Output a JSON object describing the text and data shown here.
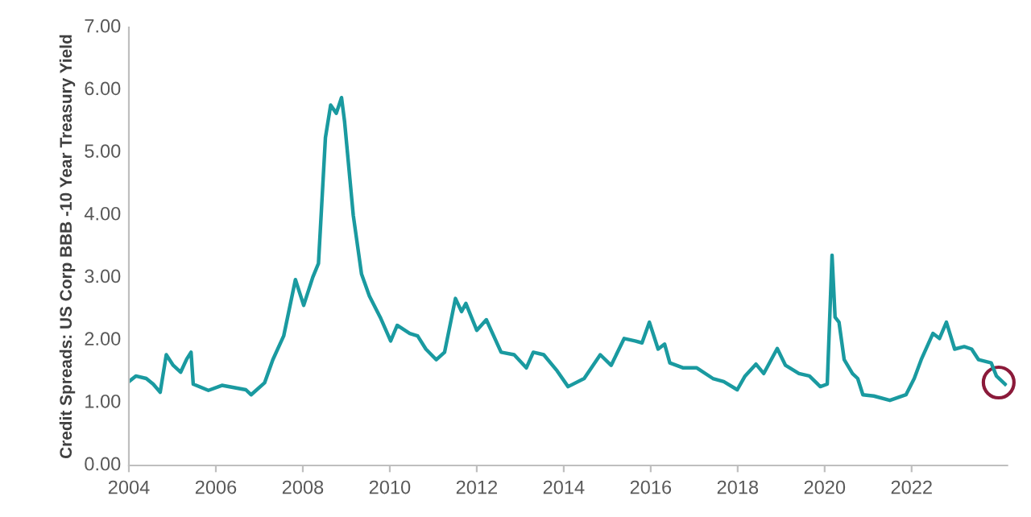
{
  "chart_data": {
    "type": "line",
    "ylabel": "Credit Spreads: US Corp BBB -10 Year Treasury Yield",
    "xlim": [
      2004,
      2024.2
    ],
    "xticks": [
      2004,
      2006,
      2008,
      2010,
      2012,
      2014,
      2016,
      2018,
      2020,
      2022
    ],
    "ylim": [
      0,
      7
    ],
    "yticks": [
      {
        "value": 0,
        "label": "0.00"
      },
      {
        "value": 1,
        "label": "1.00"
      },
      {
        "value": 2,
        "label": "2.00"
      },
      {
        "value": 3,
        "label": "3.00"
      },
      {
        "value": 4,
        "label": "4.00"
      },
      {
        "value": 5,
        "label": "5.00"
      },
      {
        "value": 6,
        "label": "6.00"
      },
      {
        "value": 7,
        "label": "7.00"
      }
    ],
    "grid": false,
    "legend": false,
    "series": [
      {
        "color": "#1a9aa0",
        "x": [
          2004.0,
          2004.16,
          2004.4,
          2004.56,
          2004.72,
          2004.86,
          2005.02,
          2005.19,
          2005.33,
          2005.43,
          2005.48,
          2005.83,
          2006.14,
          2006.69,
          2006.81,
          2007.12,
          2007.31,
          2007.56,
          2007.83,
          2008.02,
          2008.23,
          2008.36,
          2008.52,
          2008.64,
          2008.77,
          2008.89,
          2008.96,
          2009.16,
          2009.35,
          2009.53,
          2009.78,
          2010.02,
          2010.17,
          2010.46,
          2010.64,
          2010.83,
          2011.07,
          2011.26,
          2011.51,
          2011.65,
          2011.75,
          2012.0,
          2012.22,
          2012.56,
          2012.86,
          2013.14,
          2013.3,
          2013.54,
          2013.85,
          2014.1,
          2014.47,
          2014.84,
          2015.09,
          2015.39,
          2015.64,
          2015.8,
          2015.97,
          2016.17,
          2016.32,
          2016.44,
          2016.75,
          2017.06,
          2017.43,
          2017.68,
          2017.99,
          2018.17,
          2018.42,
          2018.6,
          2018.91,
          2019.1,
          2019.41,
          2019.65,
          2019.9,
          2020.06,
          2020.17,
          2020.24,
          2020.33,
          2020.45,
          2020.64,
          2020.76,
          2020.88,
          2021.13,
          2021.5,
          2021.87,
          2022.06,
          2022.22,
          2022.49,
          2022.64,
          2022.8,
          2022.99,
          2023.21,
          2023.38,
          2023.54,
          2023.83,
          2023.95,
          2024.15
        ],
        "values": [
          1.34,
          1.43,
          1.39,
          1.3,
          1.17,
          1.77,
          1.6,
          1.49,
          1.7,
          1.81,
          1.3,
          1.2,
          1.28,
          1.21,
          1.13,
          1.32,
          1.69,
          2.07,
          2.97,
          2.56,
          3.01,
          3.23,
          5.24,
          5.76,
          5.63,
          5.88,
          5.5,
          4.0,
          3.06,
          2.71,
          2.37,
          1.99,
          2.24,
          2.11,
          2.07,
          1.86,
          1.69,
          1.81,
          2.67,
          2.46,
          2.59,
          2.16,
          2.33,
          1.81,
          1.77,
          1.56,
          1.81,
          1.77,
          1.51,
          1.26,
          1.39,
          1.77,
          1.6,
          2.03,
          1.99,
          1.96,
          2.29,
          1.86,
          1.94,
          1.64,
          1.56,
          1.56,
          1.39,
          1.34,
          1.21,
          1.43,
          1.62,
          1.47,
          1.87,
          1.6,
          1.47,
          1.43,
          1.26,
          1.3,
          3.36,
          2.37,
          2.29,
          1.69,
          1.47,
          1.39,
          1.13,
          1.11,
          1.04,
          1.13,
          1.39,
          1.69,
          2.11,
          2.03,
          2.29,
          1.86,
          1.9,
          1.86,
          1.69,
          1.64,
          1.43,
          1.3
        ]
      }
    ]
  }
}
